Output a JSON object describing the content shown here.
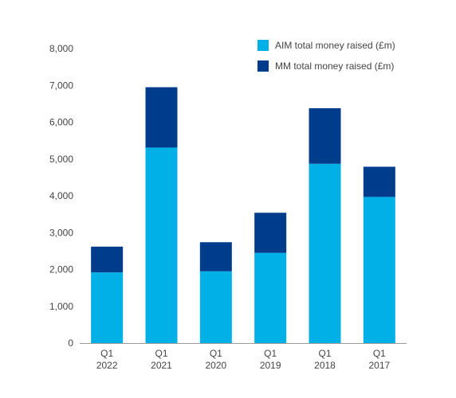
{
  "chart_data": {
    "type": "bar",
    "stacked": true,
    "categories": [
      [
        "Q1",
        "2022"
      ],
      [
        "Q1",
        "2021"
      ],
      [
        "Q1",
        "2020"
      ],
      [
        "Q1",
        "2019"
      ],
      [
        "Q1",
        "2018"
      ],
      [
        "Q1",
        "2017"
      ]
    ],
    "series": [
      {
        "name": "AIM total money raised (£m)",
        "color": "#00b0e6",
        "values": [
          1920,
          5310,
          1950,
          2450,
          4870,
          3970
        ]
      },
      {
        "name": "MM total money raised (£m)",
        "color": "#003c8c",
        "values": [
          700,
          1640,
          790,
          1090,
          1510,
          820
        ]
      }
    ],
    "ylim": [
      0,
      8000
    ],
    "yticks": [
      0,
      1000,
      2000,
      3000,
      4000,
      5000,
      6000,
      7000,
      8000
    ],
    "ytick_labels": [
      "0",
      "1,000",
      "2,000",
      "3,000",
      "4,000",
      "5,000",
      "6,000",
      "7,000",
      "8,000"
    ],
    "grid": false,
    "legend_position": "top-right",
    "title": "",
    "xlabel": "",
    "ylabel": ""
  }
}
